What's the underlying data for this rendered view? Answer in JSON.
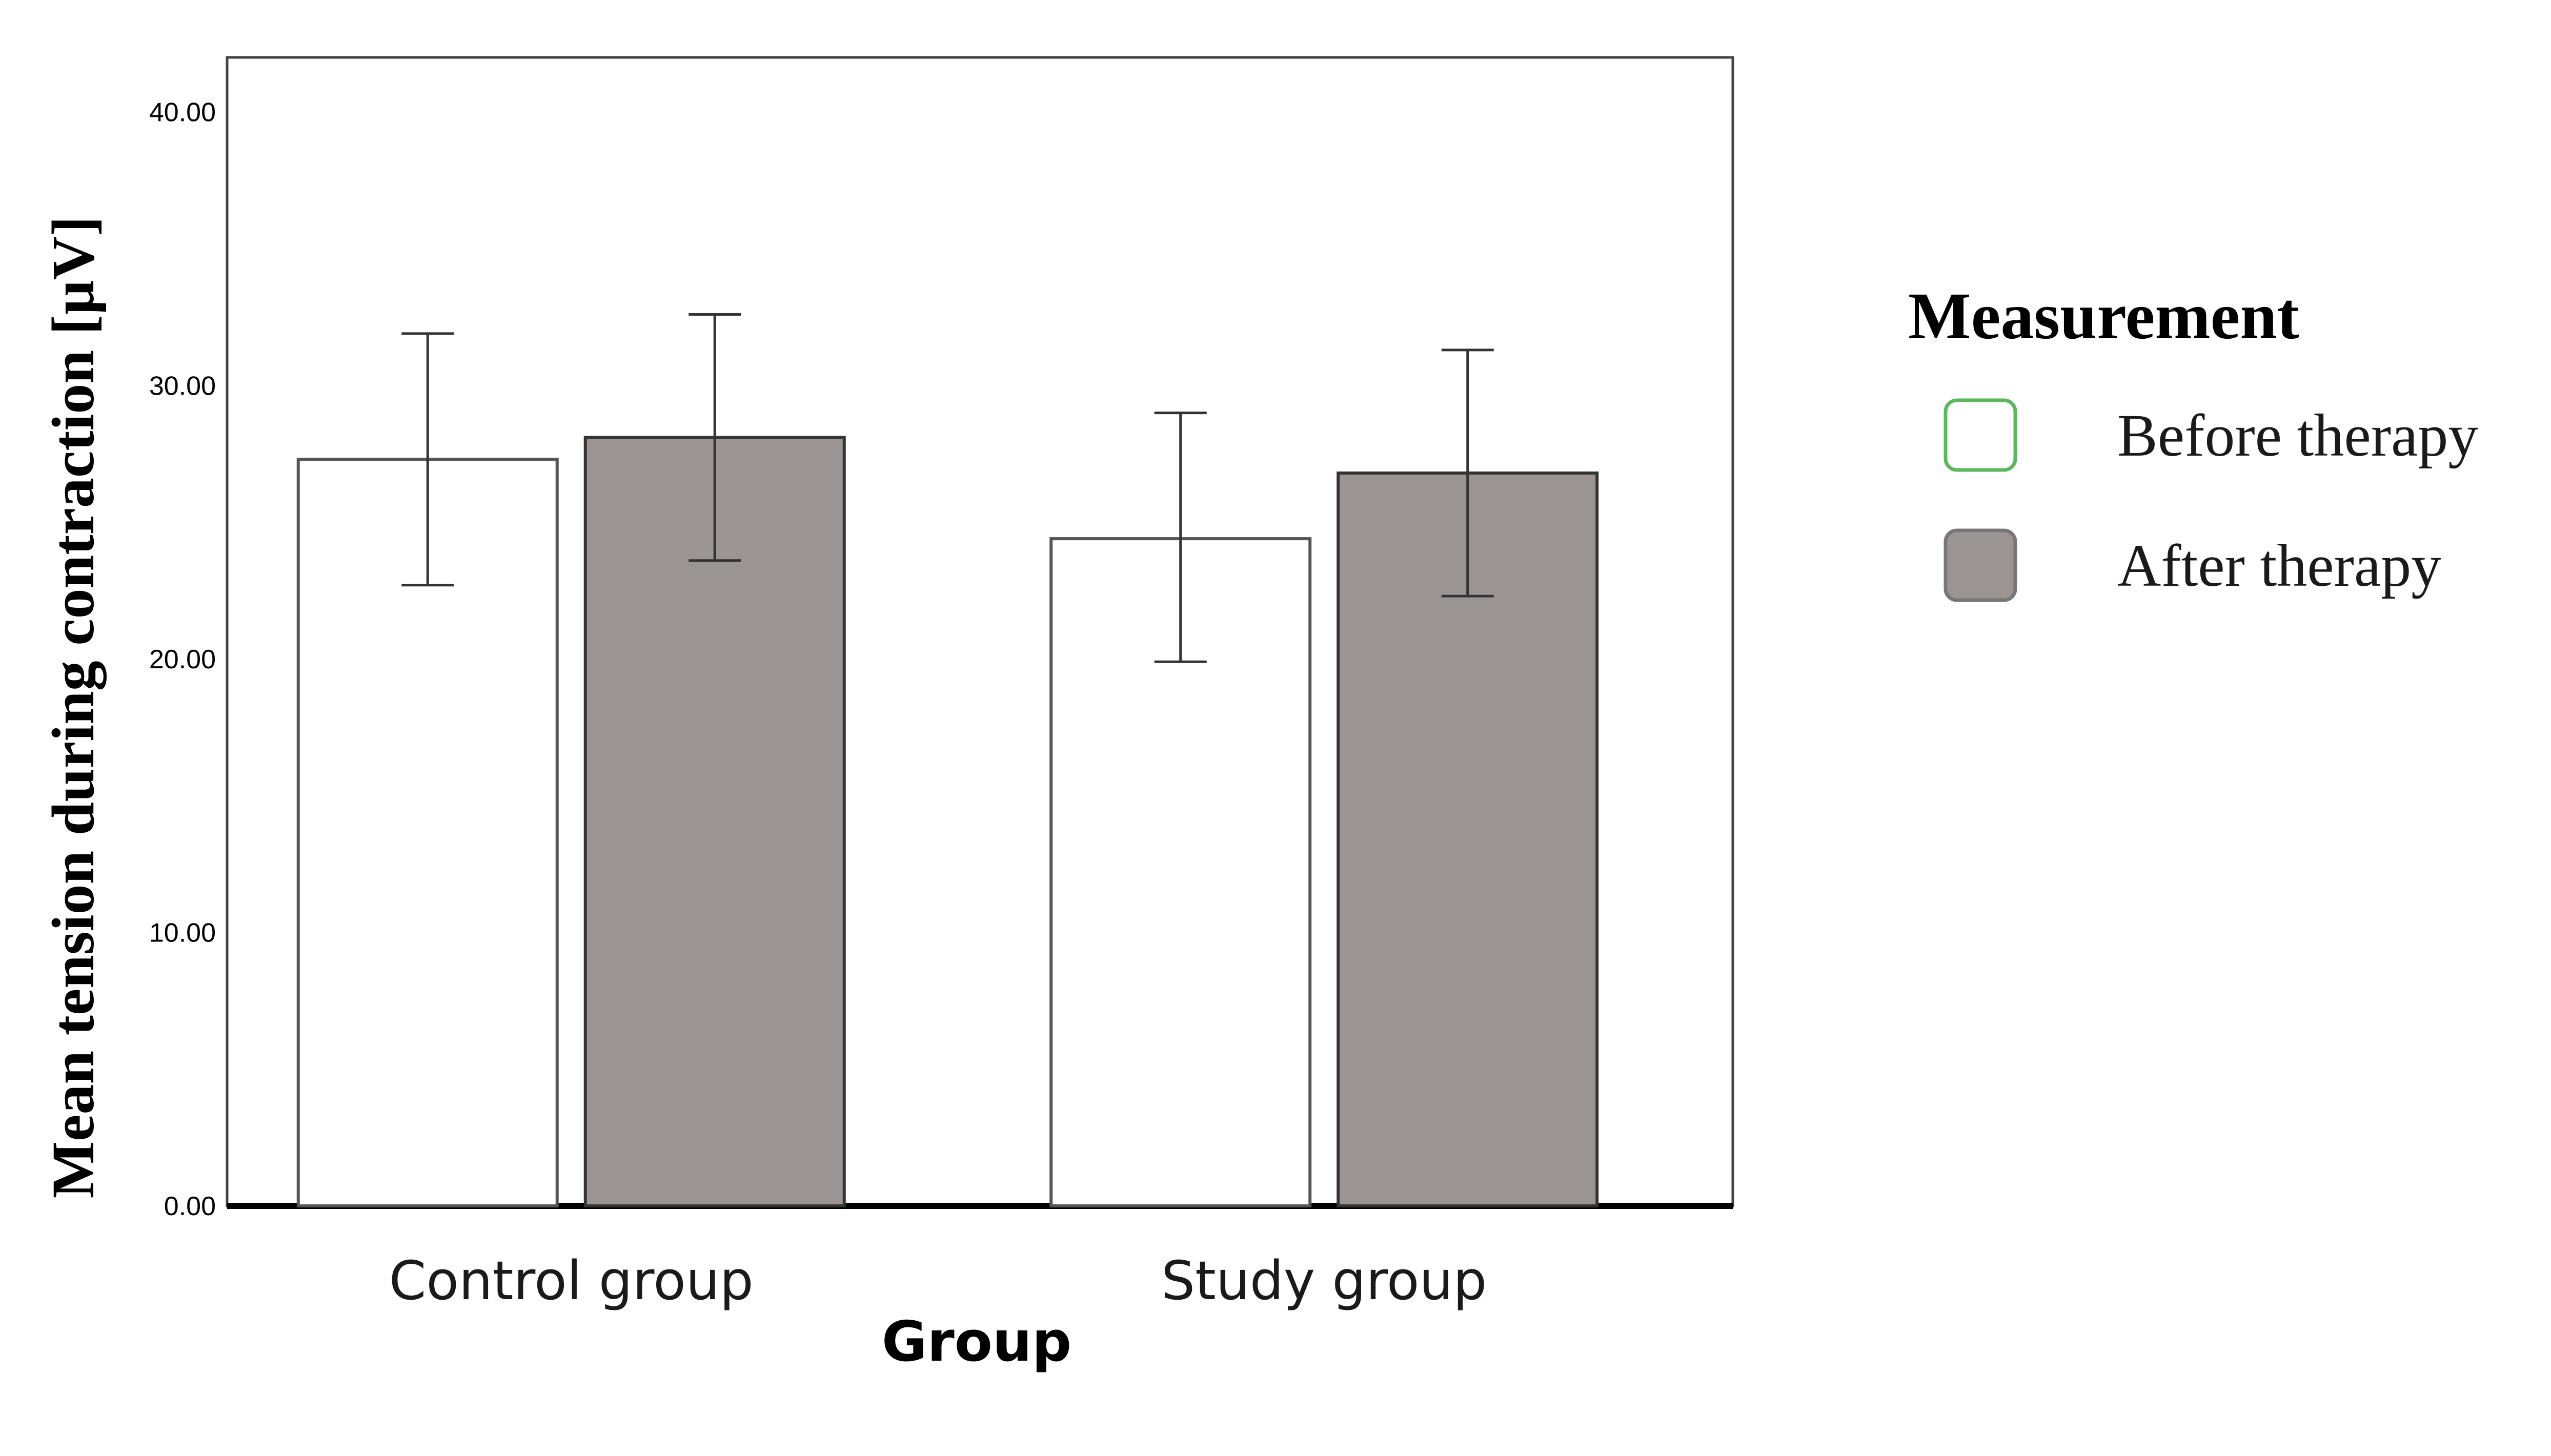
{
  "chart_data": {
    "type": "bar",
    "xlabel": "Group",
    "ylabel": "Mean tension during contraction [µV]",
    "ylim": [
      0,
      42
    ],
    "yticks": [
      0,
      10,
      20,
      30,
      40
    ],
    "ytick_labels": [
      "0.00",
      "10.00",
      "20.00",
      "30.00",
      "40.00"
    ],
    "categories": [
      "Control group",
      "Study group"
    ],
    "legend_title": "Measurement",
    "legend_position": "right",
    "series": [
      {
        "name": "Before therapy",
        "fill": "#ffffff",
        "stroke": "#555555",
        "legend_stroke": "#5cb85c",
        "values": [
          27.3,
          24.4
        ],
        "error_low": [
          22.7,
          19.9
        ],
        "error_high": [
          31.9,
          29.0
        ]
      },
      {
        "name": "After therapy",
        "fill": "#9a9593",
        "stroke": "#333333",
        "legend_stroke": "#777777",
        "values": [
          28.1,
          26.8
        ],
        "error_low": [
          23.6,
          22.3
        ],
        "error_high": [
          32.6,
          31.3
        ]
      }
    ]
  }
}
